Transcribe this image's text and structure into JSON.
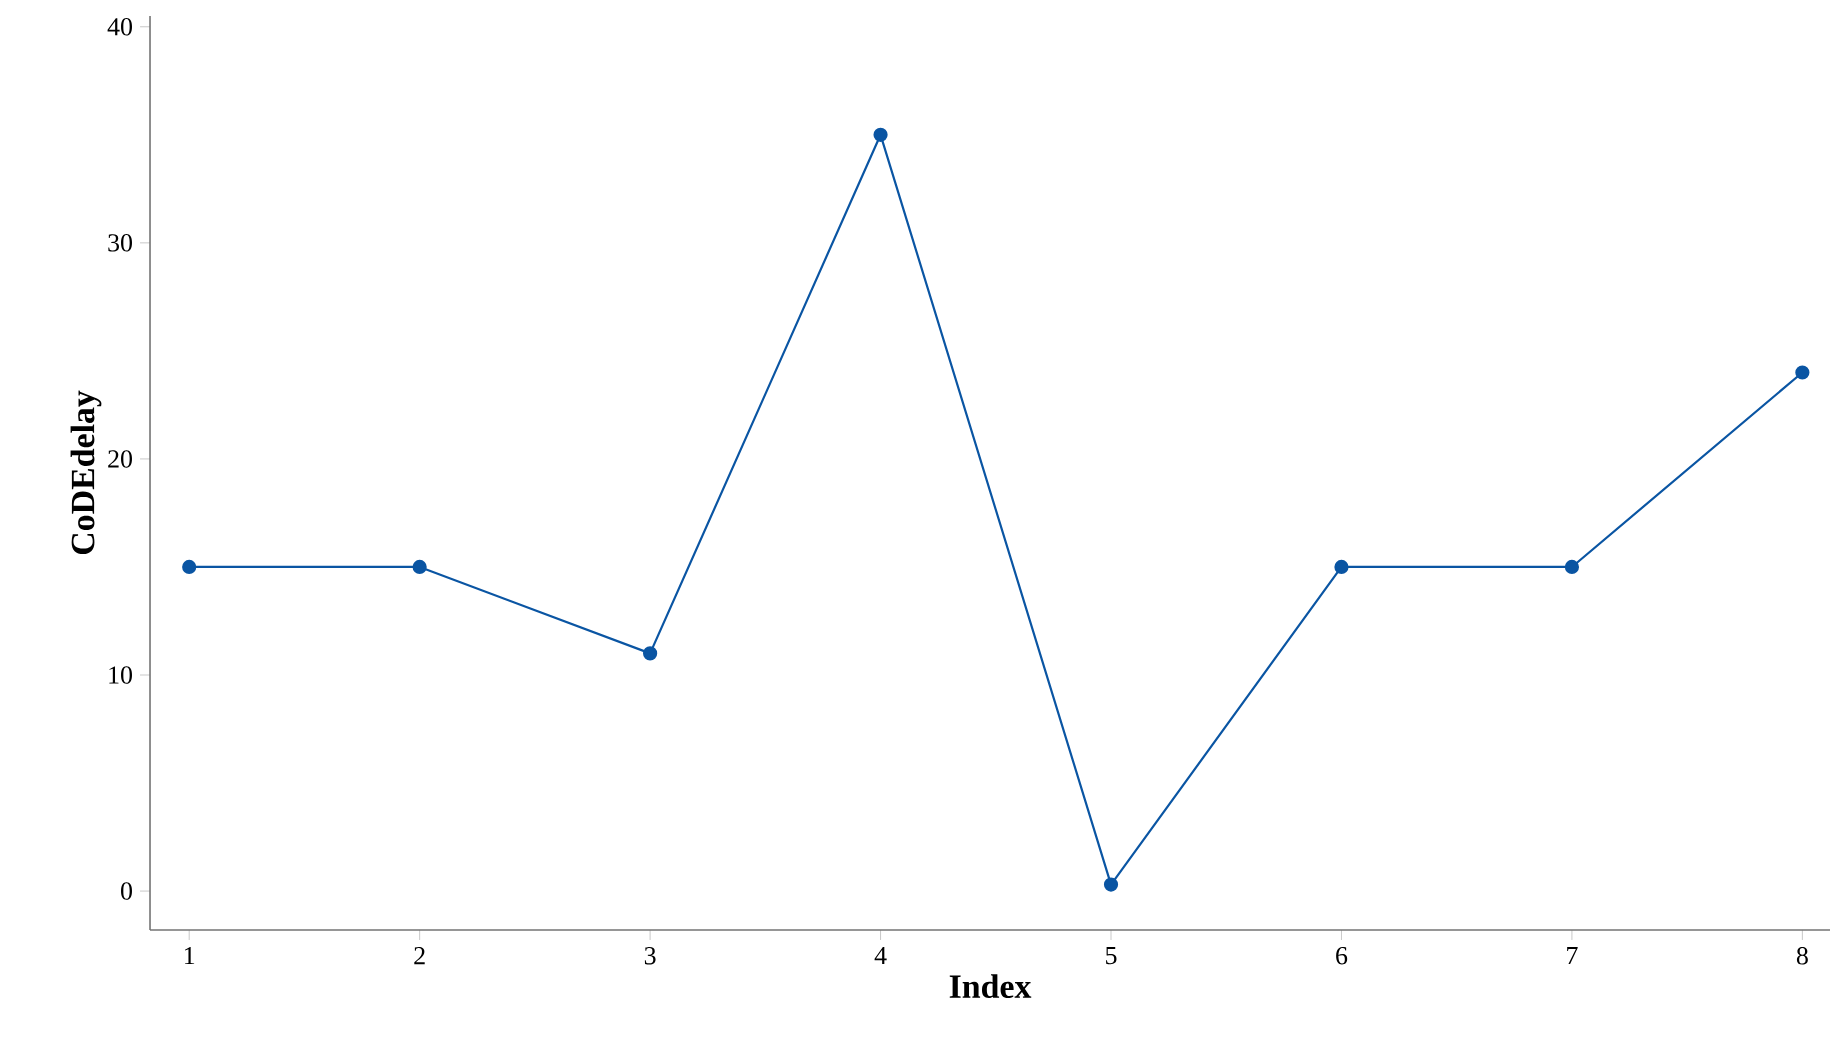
{
  "chart_data": {
    "type": "line",
    "xlabel": "Index",
    "ylabel": "CoDEdelay",
    "x": [
      1,
      2,
      3,
      4,
      5,
      6,
      7,
      8
    ],
    "series": [
      {
        "color": "#0a55a3",
        "values": [
          15,
          15,
          11,
          35,
          0.3,
          15,
          15,
          24
        ]
      }
    ],
    "xlim": [
      0.83,
      8.12
    ],
    "ylim": [
      -1.8,
      40.5
    ],
    "xticks": [
      1,
      2,
      3,
      4,
      5,
      6,
      7,
      8
    ],
    "yticks": [
      0,
      10,
      20,
      30,
      40
    ],
    "marker": "circle",
    "line_style": "solid"
  }
}
